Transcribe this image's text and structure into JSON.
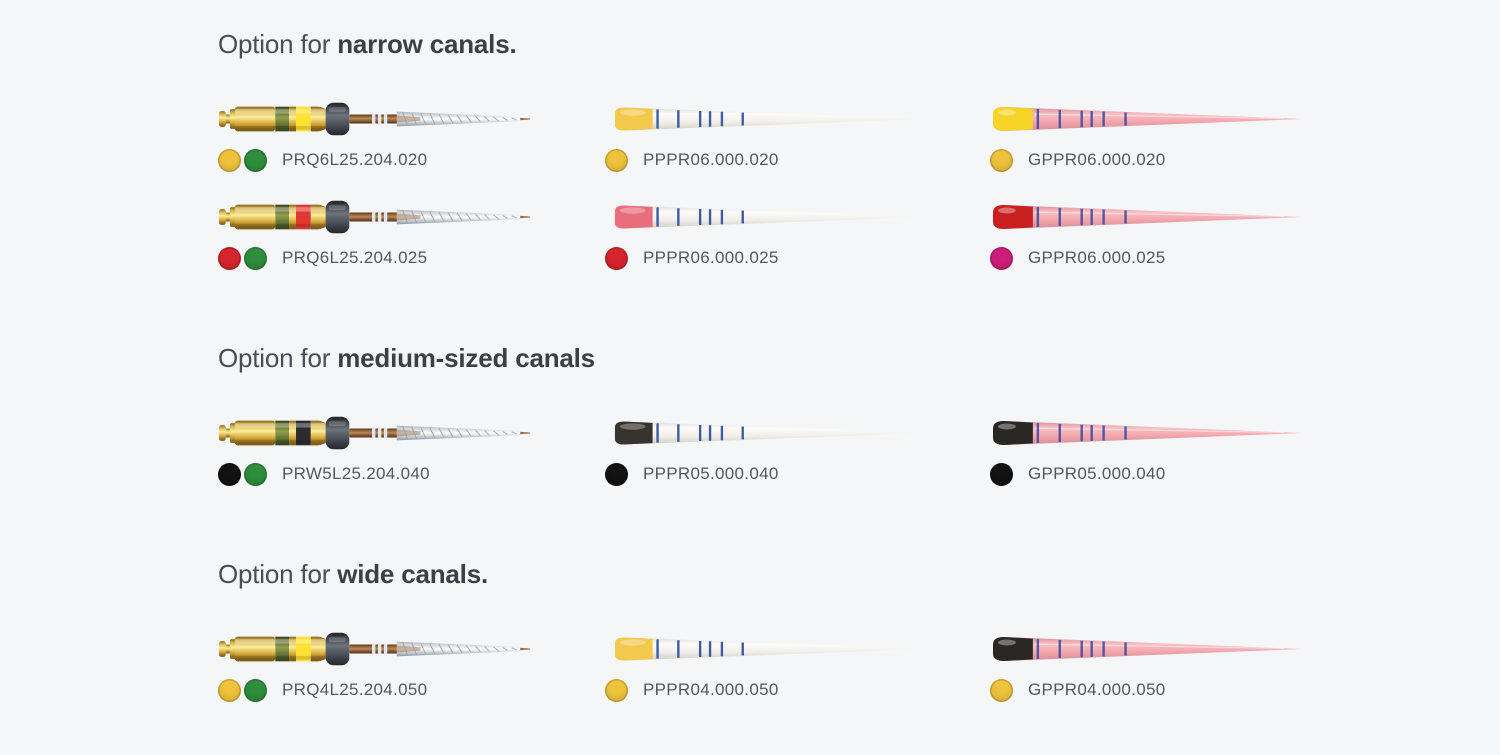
{
  "page": {
    "background_color": "#f5f6f8"
  },
  "palette": {
    "dot_yellow": "#eec23c",
    "dot_green": "#2e8e3d",
    "dot_red": "#d6252c",
    "dot_magenta": "#ce1e7c",
    "dot_black": "#121212",
    "band_yellow": "#ffe133",
    "band_red": "#e03832",
    "band_black": "#2b2d31",
    "paper_tip_yellow": "#f2c94c",
    "paper_tip_red": "#e96d7c",
    "paper_tip_black": "#373430",
    "gp_tip_yellow": "#f6d327",
    "gp_tip_red": "#c81f1f",
    "gp_tip_black": "#2a2824"
  },
  "sections": [
    {
      "heading_regular": "Option for ",
      "heading_bold": "narrow canals.",
      "rows": [
        [
          {
            "kind": "rotary-file",
            "band": "band_yellow",
            "dots": [
              "dot_yellow",
              "dot_green"
            ],
            "code": "PRQ6L25.204.020"
          },
          {
            "kind": "paper-point",
            "tip": "paper_tip_yellow",
            "dots": [
              "dot_yellow"
            ],
            "code": "PPPR06.000.020"
          },
          {
            "kind": "gutta-percha-point",
            "tip": "gp_tip_yellow",
            "dots": [
              "dot_yellow"
            ],
            "code": "GPPR06.000.020"
          }
        ],
        [
          {
            "kind": "rotary-file",
            "band": "band_red",
            "dots": [
              "dot_red",
              "dot_green"
            ],
            "code": "PRQ6L25.204.025"
          },
          {
            "kind": "paper-point",
            "tip": "paper_tip_red",
            "dots": [
              "dot_red"
            ],
            "code": "PPPR06.000.025"
          },
          {
            "kind": "gutta-percha-point",
            "tip": "gp_tip_red",
            "dots": [
              "dot_magenta"
            ],
            "code": "GPPR06.000.025"
          }
        ]
      ]
    },
    {
      "heading_regular": "Option for ",
      "heading_bold": "medium-sized canals",
      "rows": [
        [
          {
            "kind": "rotary-file",
            "band": "band_black",
            "dots": [
              "dot_black",
              "dot_green"
            ],
            "code": "PRW5L25.204.040"
          },
          {
            "kind": "paper-point",
            "tip": "paper_tip_black",
            "dots": [
              "dot_black"
            ],
            "code": "PPPR05.000.040"
          },
          {
            "kind": "gutta-percha-point",
            "tip": "gp_tip_black",
            "dots": [
              "dot_black"
            ],
            "code": "GPPR05.000.040"
          }
        ]
      ]
    },
    {
      "heading_regular": "Option for ",
      "heading_bold": "wide canals.",
      "rows": [
        [
          {
            "kind": "rotary-file",
            "band": "band_yellow",
            "dots": [
              "dot_yellow",
              "dot_green"
            ],
            "code": "PRQ4L25.204.050"
          },
          {
            "kind": "paper-point",
            "tip": "paper_tip_yellow",
            "dots": [
              "dot_yellow"
            ],
            "code": "PPPR04.000.050"
          },
          {
            "kind": "gutta-percha-point",
            "tip": "gp_tip_black",
            "dots": [
              "dot_yellow"
            ],
            "code": "GPPR04.000.050"
          }
        ]
      ]
    }
  ]
}
